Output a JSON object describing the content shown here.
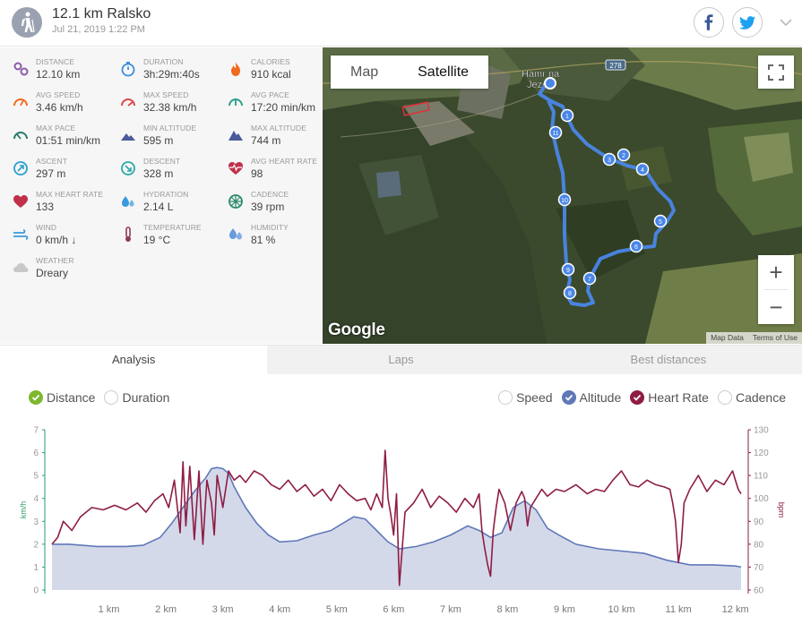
{
  "header": {
    "title": "12.1 km Ralsko",
    "date": "Jul 21, 2019 1:22 PM"
  },
  "stats": [
    {
      "label": "DISTANCE",
      "value": "12.10 km",
      "icon": "distance-icon",
      "color": "#8e5aa8"
    },
    {
      "label": "DURATION",
      "value": "3h:29m:40s",
      "icon": "stopwatch-icon",
      "color": "#3a8dde"
    },
    {
      "label": "CALORIES",
      "value": "910 kcal",
      "icon": "flame-icon",
      "color": "#f06a1d"
    },
    {
      "label": "AVG SPEED",
      "value": "3.46 km/h",
      "icon": "speedometer-icon",
      "color": "#f06a1d"
    },
    {
      "label": "MAX SPEED",
      "value": "32.38 km/h",
      "icon": "speedometer-max-icon",
      "color": "#e04848"
    },
    {
      "label": "AVG PACE",
      "value": "17:20 min/km",
      "icon": "pace-icon",
      "color": "#2a9e8a"
    },
    {
      "label": "MAX PACE",
      "value": "01:51 min/km",
      "icon": "max-pace-icon",
      "color": "#2a7a6a"
    },
    {
      "label": "MIN ALTITUDE",
      "value": "595 m",
      "icon": "mountain-low-icon",
      "color": "#4a5a9a"
    },
    {
      "label": "MAX ALTITUDE",
      "value": "744 m",
      "icon": "mountain-high-icon",
      "color": "#4a5a9a"
    },
    {
      "label": "ASCENT",
      "value": "297 m",
      "icon": "ascent-icon",
      "color": "#2a9ed0"
    },
    {
      "label": "DESCENT",
      "value": "328 m",
      "icon": "descent-icon",
      "color": "#2aa8a8"
    },
    {
      "label": "AVG HEART RATE",
      "value": "98",
      "icon": "heart-pulse-icon",
      "color": "#c0304a"
    },
    {
      "label": "MAX HEART RATE",
      "value": "133",
      "icon": "heart-icon",
      "color": "#c0304a"
    },
    {
      "label": "HYDRATION",
      "value": "2.14 L",
      "icon": "water-drops-icon",
      "color": "#3a9ade"
    },
    {
      "label": "CADENCE",
      "value": "39 rpm",
      "icon": "cadence-icon",
      "color": "#2a8a6a"
    },
    {
      "label": "WIND",
      "value": "0 km/h",
      "icon": "wind-icon",
      "color": "#3a9ade",
      "extra": "↓"
    },
    {
      "label": "TEMPERATURE",
      "value": "19 °C",
      "icon": "thermometer-icon",
      "color": "#8e3a5a"
    },
    {
      "label": "HUMIDITY",
      "value": "81 %",
      "icon": "humidity-icon",
      "color": "#6a9ade"
    },
    {
      "label": "WEATHER",
      "value": "Dreary",
      "icon": "cloud-icon",
      "color": "#c8c8c8"
    }
  ],
  "map": {
    "toggle_map": "Map",
    "toggle_satellite": "Satellite",
    "place_label_1": "Hamr na",
    "place_label_2": "Jezeře",
    "road_number": "278",
    "google": "Google",
    "map_data": "Map Data",
    "terms": "Terms of Use",
    "zoom_in": "+",
    "zoom_out": "−",
    "markers": [
      "1",
      "2",
      "3",
      "4",
      "5",
      "6",
      "7",
      "8",
      "9",
      "10",
      "11"
    ]
  },
  "tabs": [
    {
      "label": "Analysis",
      "active": true
    },
    {
      "label": "Laps",
      "active": false
    },
    {
      "label": "Best distances",
      "active": false
    }
  ],
  "legend": {
    "left": [
      {
        "label": "Distance",
        "checked": true,
        "color": "#7db72f"
      },
      {
        "label": "Duration",
        "checked": false
      }
    ],
    "right": [
      {
        "label": "Speed",
        "checked": false
      },
      {
        "label": "Altitude",
        "checked": true,
        "color": "#6078b8"
      },
      {
        "label": "Heart Rate",
        "checked": true,
        "color": "#8e1d43"
      },
      {
        "label": "Cadence",
        "checked": false
      }
    ]
  },
  "chart_data": {
    "type": "line",
    "xlabel": "",
    "x_ticks": [
      "1 km",
      "2 km",
      "3 km",
      "4 km",
      "5 km",
      "6 km",
      "7 km",
      "8 km",
      "9 km",
      "10 km",
      "11 km",
      "12 km"
    ],
    "x_range": [
      0,
      12.1
    ],
    "y_left": {
      "label": "km/h",
      "ticks": [
        0,
        1,
        2,
        3,
        4,
        5,
        6,
        7
      ],
      "range": [
        0,
        7
      ],
      "color": "#2a9e6a"
    },
    "y_right": {
      "label": "bpm",
      "ticks": [
        60,
        70,
        80,
        90,
        100,
        110,
        120,
        130
      ],
      "range": [
        60,
        130
      ],
      "color": "#8e1d43"
    },
    "series": [
      {
        "name": "Altitude",
        "axis": "left",
        "color": "#6078b8",
        "x": [
          0,
          0.3,
          0.8,
          1.3,
          1.6,
          1.9,
          2.1,
          2.3,
          2.5,
          2.7,
          2.8,
          2.9,
          3.0,
          3.1,
          3.2,
          3.4,
          3.6,
          3.8,
          4.0,
          4.3,
          4.6,
          4.9,
          5.1,
          5.3,
          5.5,
          5.7,
          5.9,
          6.1,
          6.4,
          6.7,
          7.0,
          7.3,
          7.5,
          7.7,
          7.9,
          8.1,
          8.3,
          8.5,
          8.7,
          8.9,
          9.2,
          9.6,
          10.0,
          10.4,
          10.8,
          11.2,
          11.6,
          12.0,
          12.1
        ],
        "values": [
          2.0,
          2.0,
          1.9,
          1.9,
          1.95,
          2.3,
          2.9,
          3.6,
          4.3,
          4.9,
          5.3,
          5.35,
          5.3,
          5.1,
          4.5,
          3.6,
          2.9,
          2.4,
          2.1,
          2.15,
          2.4,
          2.6,
          2.9,
          3.2,
          3.1,
          2.6,
          2.1,
          1.8,
          1.9,
          2.1,
          2.4,
          2.8,
          2.6,
          2.3,
          2.5,
          3.6,
          3.9,
          3.5,
          2.7,
          2.4,
          2.0,
          1.8,
          1.7,
          1.6,
          1.3,
          1.1,
          1.1,
          1.05,
          1.0
        ]
      },
      {
        "name": "Heart Rate",
        "axis": "right",
        "color": "#8e1d43",
        "x": [
          0,
          0.1,
          0.2,
          0.35,
          0.5,
          0.7,
          0.9,
          1.1,
          1.3,
          1.5,
          1.65,
          1.8,
          1.95,
          2.05,
          2.15,
          2.25,
          2.3,
          2.35,
          2.42,
          2.5,
          2.58,
          2.65,
          2.72,
          2.8,
          2.85,
          2.9,
          3.0,
          3.1,
          3.2,
          3.3,
          3.4,
          3.55,
          3.7,
          3.85,
          4.0,
          4.15,
          4.3,
          4.45,
          4.6,
          4.75,
          4.9,
          5.05,
          5.2,
          5.35,
          5.5,
          5.6,
          5.7,
          5.8,
          5.85,
          5.9,
          5.95,
          6.0,
          6.05,
          6.1,
          6.2,
          6.35,
          6.5,
          6.65,
          6.8,
          6.95,
          7.1,
          7.25,
          7.4,
          7.5,
          7.55,
          7.6,
          7.65,
          7.7,
          7.75,
          7.8,
          7.85,
          7.95,
          8.05,
          8.15,
          8.25,
          8.3,
          8.35,
          8.4,
          8.5,
          8.6,
          8.7,
          8.85,
          9.0,
          9.2,
          9.4,
          9.55,
          9.7,
          9.85,
          10.0,
          10.15,
          10.3,
          10.45,
          10.6,
          10.75,
          10.85,
          10.9,
          10.95,
          11.0,
          11.05,
          11.1,
          11.2,
          11.35,
          11.5,
          11.65,
          11.8,
          11.95,
          12.05,
          12.1
        ],
        "values": [
          80,
          83,
          90,
          86,
          92,
          96,
          95,
          97,
          95,
          98,
          94,
          99,
          102,
          96,
          108,
          85,
          116,
          88,
          114,
          82,
          112,
          80,
          108,
          98,
          84,
          110,
          96,
          112,
          108,
          110,
          107,
          112,
          110,
          106,
          104,
          108,
          103,
          106,
          101,
          104,
          99,
          106,
          102,
          99,
          100,
          95,
          102,
          96,
          121,
          100,
          93,
          84,
          102,
          62,
          94,
          98,
          104,
          96,
          101,
          98,
          94,
          100,
          96,
          102,
          86,
          78,
          71,
          66,
          86,
          96,
          104,
          98,
          86,
          98,
          103,
          100,
          88,
          96,
          100,
          104,
          101,
          104,
          103,
          106,
          102,
          104,
          103,
          108,
          112,
          106,
          105,
          108,
          106,
          105,
          104,
          98,
          90,
          72,
          80,
          98,
          104,
          110,
          103,
          108,
          106,
          112,
          104,
          102
        ]
      }
    ]
  }
}
